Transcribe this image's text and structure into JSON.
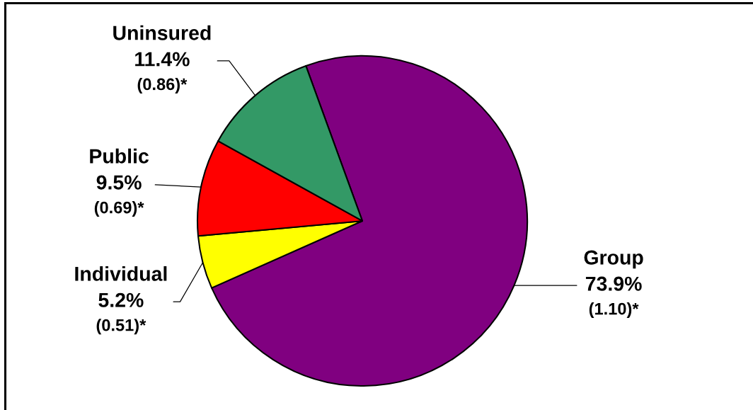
{
  "chart_data": {
    "type": "pie",
    "categories": [
      "Group",
      "Individual",
      "Public",
      "Uninsured"
    ],
    "values": [
      73.9,
      5.2,
      9.5,
      11.4
    ],
    "colors": [
      "#800080",
      "#ffff00",
      "#ff0000",
      "#339966"
    ],
    "value_labels": [
      "73.9%\n(1.10)*",
      "5.2%\n(0.51)*",
      "9.5%\n(0.69)*",
      "11.4%\n(0.86)*"
    ]
  }
}
